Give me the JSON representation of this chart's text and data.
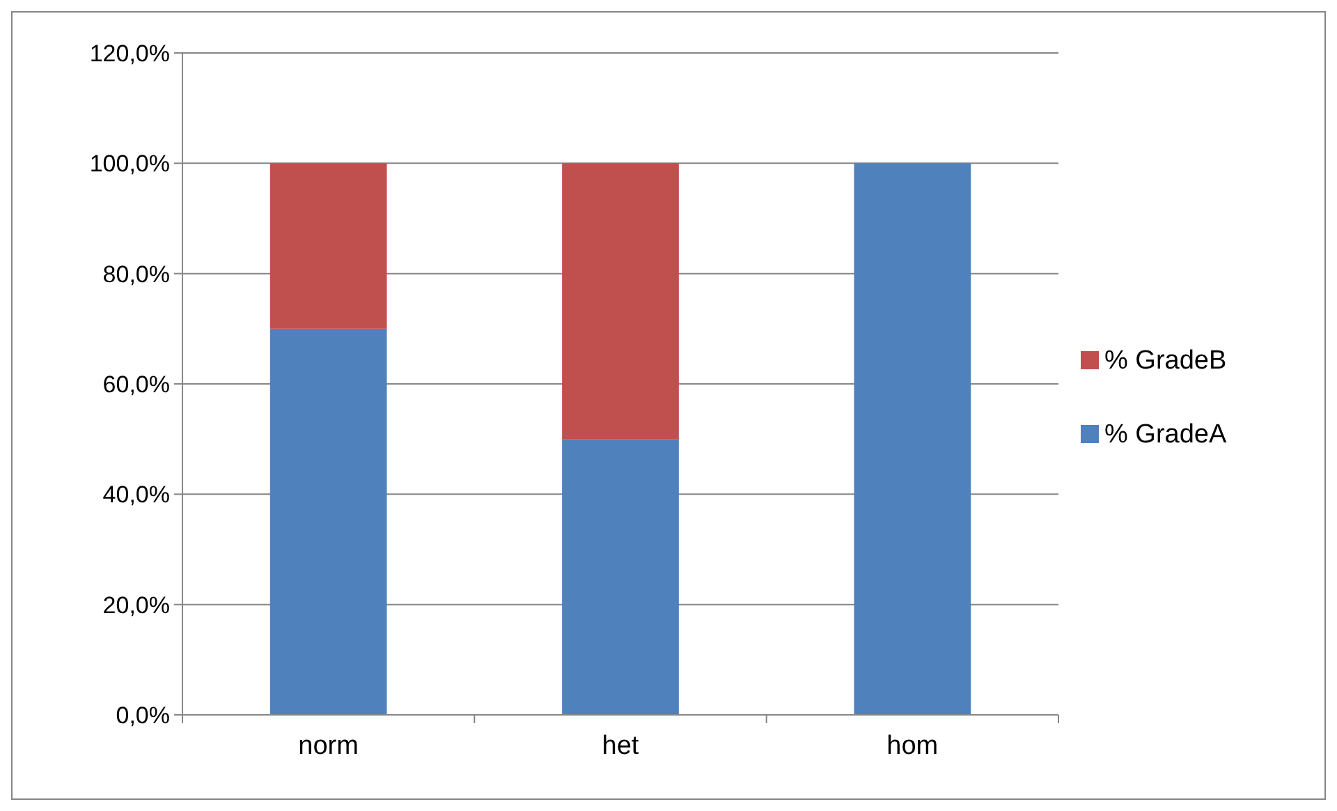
{
  "chart_data": {
    "type": "bar",
    "stacked": true,
    "categories": [
      "norm",
      "het",
      "hom"
    ],
    "series": [
      {
        "name": "% GradeA",
        "color": "#4f81bd",
        "values": [
          70,
          50,
          100
        ]
      },
      {
        "name": "% GradeB",
        "color": "#c0504d",
        "values": [
          30,
          50,
          0
        ]
      }
    ],
    "ylim": [
      0,
      120
    ],
    "yticks": [
      {
        "value": 0,
        "label": "0,0%"
      },
      {
        "value": 20,
        "label": "20,0%"
      },
      {
        "value": 40,
        "label": "40,0%"
      },
      {
        "value": 60,
        "label": "60,0%"
      },
      {
        "value": 80,
        "label": "80,0%"
      },
      {
        "value": 100,
        "label": "100,0%"
      },
      {
        "value": 120,
        "label": "120,0%"
      }
    ],
    "grid": "y",
    "legend": "right"
  }
}
